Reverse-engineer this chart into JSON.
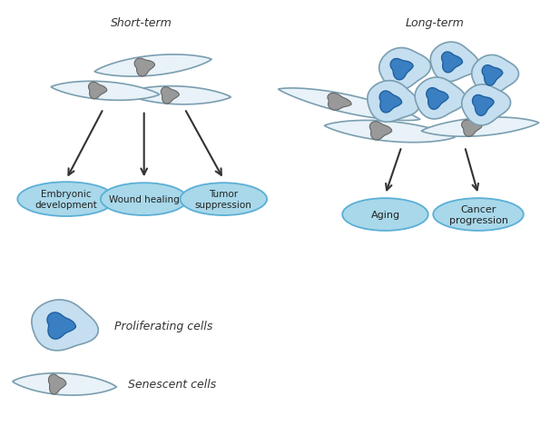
{
  "background_color": "#ffffff",
  "short_term_label": "Short-term",
  "long_term_label": "Long-term",
  "short_term_boxes": [
    "Embryonic\ndevelopment",
    "Wound healing",
    "Tumor\nsuppression"
  ],
  "long_term_boxes": [
    "Aging",
    "Cancer\nprogression"
  ],
  "legend_labels": [
    "Proliferating cells",
    "Senescent cells"
  ],
  "cell_body_light": "#e8f2f8",
  "cell_body_blue": "#c5dff0",
  "cell_border_color": "#7a9eb0",
  "nucleus_prolif_color": "#3a7fc1",
  "nucleus_prolif_border": "#2060a0",
  "nucleus_senesc_color": "#999999",
  "nucleus_senesc_border": "#666666",
  "ellipse_fill": "#a8d8ea",
  "ellipse_border": "#5bafd6",
  "arrow_color": "#333333"
}
